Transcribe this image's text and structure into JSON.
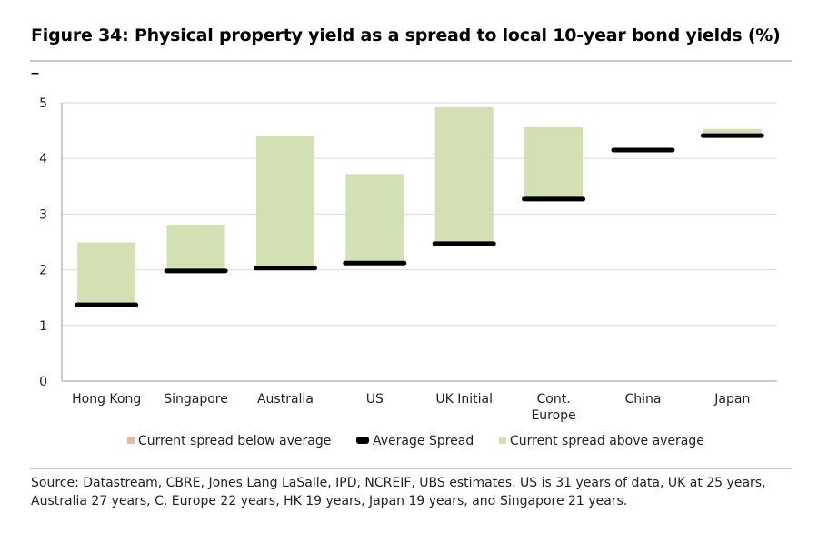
{
  "title": "Figure 34: Physical property yield as a spread to local 10-year bond yields (%)",
  "subtitle_mark": "–",
  "source": "Source:  Datastream, CBRE, Jones Lang LaSalle, IPD, NCREIF, UBS estimates. US is 31 years of data, UK at 25 years, Australia 27 years, C. Europe 22 years, HK 19 years, Japan 19 years, and Singapore 21 years.",
  "colors": {
    "below": "#e4b8a8",
    "average": "#000000",
    "above": "#d3e0b3",
    "grid": "#d9d9d9"
  },
  "chart_data": {
    "type": "bar",
    "subtype": "floating-range",
    "categories": [
      "Hong Kong",
      "Singapore",
      "Australia",
      "US",
      "UK Initial",
      "Cont.\nEurope",
      "China",
      "Japan"
    ],
    "series": [
      {
        "name": "Current spread below average",
        "values": [
          0,
          0,
          0,
          0,
          0,
          0,
          0,
          0
        ]
      },
      {
        "name": "Average Spread",
        "values": [
          1.37,
          1.98,
          2.03,
          2.12,
          2.47,
          3.27,
          4.15,
          4.41
        ]
      },
      {
        "name": "Current spread above average",
        "values": [
          1.12,
          0.83,
          2.38,
          1.6,
          2.45,
          1.29,
          0.02,
          0.12
        ]
      }
    ],
    "current_spread": [
      2.49,
      2.81,
      4.41,
      3.72,
      4.92,
      4.56,
      4.17,
      4.53
    ],
    "ylim": [
      0,
      5
    ],
    "yticks": [
      0,
      1,
      2,
      3,
      4,
      5
    ],
    "grid": true,
    "legend": "bottom"
  }
}
